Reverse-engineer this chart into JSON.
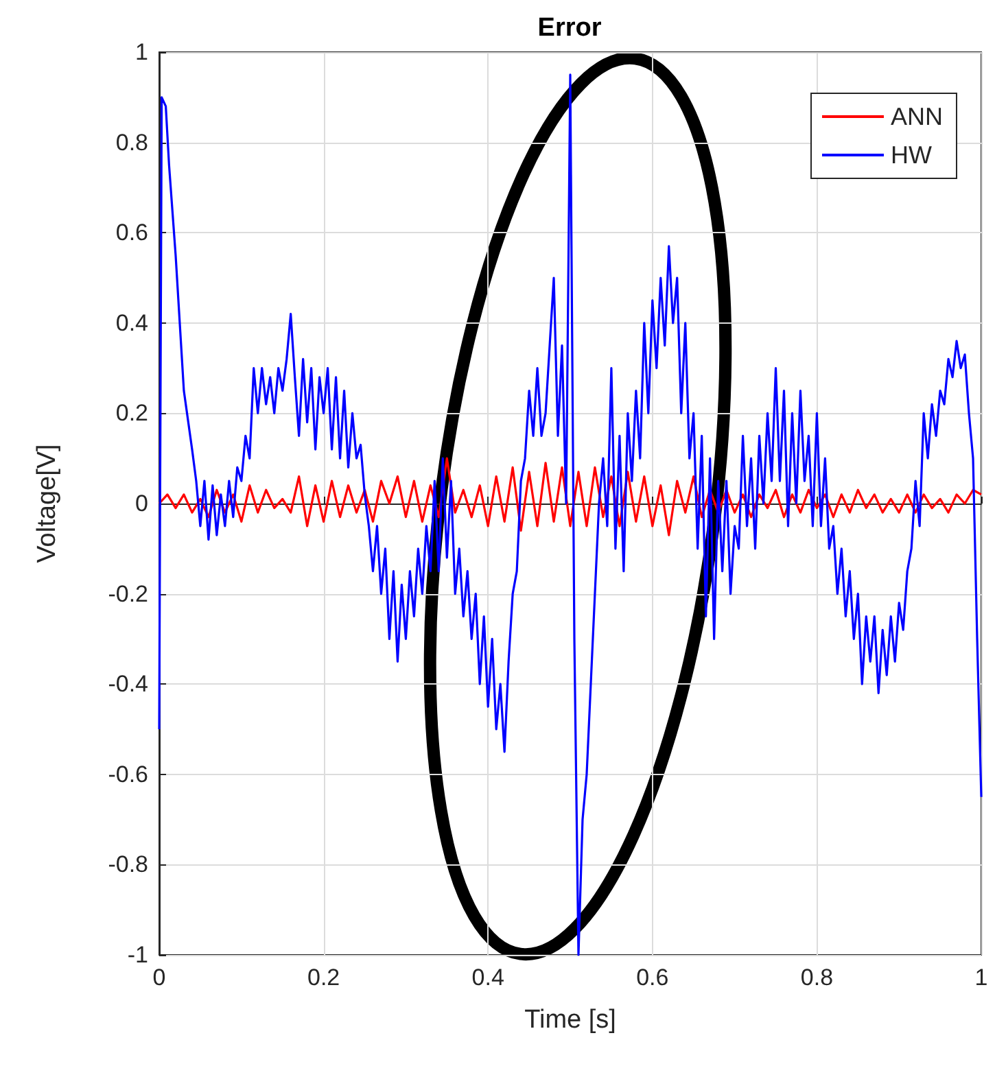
{
  "chart_data": {
    "type": "line",
    "title": "Error",
    "xlabel": "Time [s]",
    "ylabel": "Voltage[V]",
    "xlim": [
      0,
      1
    ],
    "xticks": [
      0,
      0.2,
      0.4,
      0.6,
      0.8,
      1
    ],
    "ylim": [
      -1,
      1
    ],
    "yticks": [
      -1,
      -0.8,
      -0.6,
      -0.4,
      -0.2,
      0,
      0.2,
      0.4,
      0.6,
      0.8,
      1
    ],
    "grid": true,
    "legend": "top right",
    "marker": "none",
    "line_style": "solid",
    "series": [
      {
        "name": "ANN",
        "color": "#ff0000",
        "x": [
          0,
          0.01,
          0.02,
          0.03,
          0.04,
          0.05,
          0.06,
          0.07,
          0.08,
          0.09,
          0.1,
          0.11,
          0.12,
          0.13,
          0.14,
          0.15,
          0.16,
          0.17,
          0.18,
          0.19,
          0.2,
          0.21,
          0.22,
          0.23,
          0.24,
          0.25,
          0.26,
          0.27,
          0.28,
          0.29,
          0.3,
          0.31,
          0.32,
          0.33,
          0.34,
          0.35,
          0.36,
          0.37,
          0.38,
          0.39,
          0.4,
          0.41,
          0.42,
          0.43,
          0.44,
          0.45,
          0.46,
          0.47,
          0.48,
          0.49,
          0.5,
          0.51,
          0.52,
          0.53,
          0.54,
          0.55,
          0.56,
          0.57,
          0.58,
          0.59,
          0.6,
          0.61,
          0.62,
          0.63,
          0.64,
          0.65,
          0.66,
          0.67,
          0.68,
          0.69,
          0.7,
          0.71,
          0.72,
          0.73,
          0.74,
          0.75,
          0.76,
          0.77,
          0.78,
          0.79,
          0.8,
          0.81,
          0.82,
          0.83,
          0.84,
          0.85,
          0.86,
          0.87,
          0.88,
          0.89,
          0.9,
          0.91,
          0.92,
          0.93,
          0.94,
          0.95,
          0.96,
          0.97,
          0.98,
          0.99,
          1
        ],
        "values": [
          0,
          0.02,
          -0.01,
          0.02,
          -0.02,
          0.01,
          -0.03,
          0.03,
          -0.02,
          0.02,
          -0.04,
          0.04,
          -0.02,
          0.03,
          -0.01,
          0.01,
          -0.02,
          0.06,
          -0.05,
          0.04,
          -0.04,
          0.05,
          -0.03,
          0.04,
          -0.02,
          0.03,
          -0.04,
          0.05,
          0,
          0.06,
          -0.03,
          0.05,
          -0.04,
          0.04,
          -0.03,
          0.1,
          -0.02,
          0.03,
          -0.03,
          0.04,
          -0.05,
          0.06,
          -0.04,
          0.08,
          -0.06,
          0.07,
          -0.05,
          0.09,
          -0.04,
          0.08,
          -0.05,
          0.07,
          -0.05,
          0.08,
          -0.03,
          0.06,
          -0.05,
          0.07,
          -0.04,
          0.06,
          -0.05,
          0.04,
          -0.07,
          0.05,
          -0.02,
          0.06,
          -0.03,
          0.03,
          -0.02,
          0.03,
          -0.02,
          0.02,
          -0.03,
          0.02,
          -0.01,
          0.03,
          -0.03,
          0.02,
          -0.02,
          0.03,
          -0.01,
          0.02,
          -0.03,
          0.02,
          -0.02,
          0.03,
          -0.01,
          0.02,
          -0.02,
          0.01,
          -0.02,
          0.02,
          -0.02,
          0.02,
          -0.01,
          0.01,
          -0.02,
          0.02,
          0,
          0.03,
          0.02
        ]
      },
      {
        "name": "HW",
        "color": "#0000ff",
        "x": [
          0,
          0.003,
          0.008,
          0.012,
          0.02,
          0.03,
          0.04,
          0.045,
          0.05,
          0.055,
          0.06,
          0.065,
          0.07,
          0.075,
          0.08,
          0.085,
          0.09,
          0.095,
          0.1,
          0.105,
          0.11,
          0.115,
          0.12,
          0.125,
          0.13,
          0.135,
          0.14,
          0.145,
          0.15,
          0.155,
          0.16,
          0.165,
          0.17,
          0.175,
          0.18,
          0.185,
          0.19,
          0.195,
          0.2,
          0.205,
          0.21,
          0.215,
          0.22,
          0.225,
          0.23,
          0.235,
          0.24,
          0.245,
          0.25,
          0.255,
          0.26,
          0.265,
          0.27,
          0.275,
          0.28,
          0.285,
          0.29,
          0.295,
          0.3,
          0.305,
          0.31,
          0.315,
          0.32,
          0.325,
          0.33,
          0.335,
          0.34,
          0.345,
          0.35,
          0.355,
          0.36,
          0.365,
          0.37,
          0.375,
          0.38,
          0.385,
          0.39,
          0.395,
          0.4,
          0.405,
          0.41,
          0.415,
          0.42,
          0.425,
          0.43,
          0.435,
          0.44,
          0.445,
          0.45,
          0.455,
          0.46,
          0.465,
          0.47,
          0.48,
          0.485,
          0.49,
          0.495,
          0.5,
          0.505,
          0.51,
          0.515,
          0.52,
          0.525,
          0.53,
          0.535,
          0.54,
          0.545,
          0.55,
          0.555,
          0.56,
          0.565,
          0.57,
          0.575,
          0.58,
          0.585,
          0.59,
          0.595,
          0.6,
          0.605,
          0.61,
          0.615,
          0.62,
          0.625,
          0.63,
          0.635,
          0.64,
          0.645,
          0.65,
          0.655,
          0.66,
          0.665,
          0.67,
          0.675,
          0.68,
          0.685,
          0.69,
          0.695,
          0.7,
          0.705,
          0.71,
          0.715,
          0.72,
          0.725,
          0.73,
          0.735,
          0.74,
          0.745,
          0.75,
          0.755,
          0.76,
          0.765,
          0.77,
          0.775,
          0.78,
          0.785,
          0.79,
          0.795,
          0.8,
          0.805,
          0.81,
          0.815,
          0.82,
          0.825,
          0.83,
          0.835,
          0.84,
          0.845,
          0.85,
          0.855,
          0.86,
          0.865,
          0.87,
          0.875,
          0.88,
          0.885,
          0.89,
          0.895,
          0.9,
          0.905,
          0.91,
          0.915,
          0.92,
          0.925,
          0.93,
          0.935,
          0.94,
          0.945,
          0.95,
          0.955,
          0.96,
          0.965,
          0.97,
          0.975,
          0.98,
          0.985,
          0.99,
          0.995,
          1
        ],
        "values": [
          -0.5,
          0.9,
          0.88,
          0.75,
          0.55,
          0.25,
          0.12,
          0.05,
          -0.05,
          0.05,
          -0.08,
          0.04,
          -0.07,
          0.02,
          -0.05,
          0.05,
          -0.03,
          0.08,
          0.05,
          0.15,
          0.1,
          0.3,
          0.2,
          0.3,
          0.22,
          0.28,
          0.2,
          0.3,
          0.25,
          0.32,
          0.42,
          0.28,
          0.15,
          0.32,
          0.18,
          0.3,
          0.12,
          0.28,
          0.2,
          0.3,
          0.12,
          0.28,
          0.1,
          0.25,
          0.08,
          0.2,
          0.1,
          0.13,
          0.02,
          -0.05,
          -0.15,
          -0.05,
          -0.2,
          -0.1,
          -0.3,
          -0.15,
          -0.35,
          -0.18,
          -0.3,
          -0.15,
          -0.25,
          -0.1,
          -0.2,
          -0.05,
          -0.15,
          0.05,
          -0.15,
          0.1,
          -0.12,
          0.05,
          -0.2,
          -0.1,
          -0.25,
          -0.15,
          -0.3,
          -0.2,
          -0.4,
          -0.25,
          -0.45,
          -0.3,
          -0.5,
          -0.4,
          -0.55,
          -0.35,
          -0.2,
          -0.15,
          0.05,
          0.1,
          0.25,
          0.15,
          0.3,
          0.15,
          0.2,
          0.5,
          0.15,
          0.35,
          0,
          0.95,
          -0.3,
          -1,
          -0.7,
          -0.6,
          -0.4,
          -0.2,
          0,
          0.1,
          -0.05,
          0.3,
          -0.1,
          0.15,
          -0.15,
          0.2,
          0.05,
          0.25,
          0.1,
          0.4,
          0.2,
          0.45,
          0.3,
          0.5,
          0.35,
          0.57,
          0.4,
          0.5,
          0.2,
          0.4,
          0.1,
          0.2,
          -0.1,
          0.15,
          -0.25,
          0.1,
          -0.3,
          0.05,
          -0.15,
          0.05,
          -0.2,
          -0.05,
          -0.1,
          0.15,
          -0.05,
          0.1,
          -0.1,
          0.15,
          0,
          0.2,
          0.05,
          0.3,
          0.05,
          0.25,
          -0.05,
          0.2,
          0,
          0.25,
          0.05,
          0.15,
          -0.05,
          0.2,
          -0.05,
          0.1,
          -0.1,
          -0.05,
          -0.2,
          -0.1,
          -0.25,
          -0.15,
          -0.3,
          -0.2,
          -0.4,
          -0.25,
          -0.35,
          -0.25,
          -0.42,
          -0.28,
          -0.38,
          -0.25,
          -0.35,
          -0.22,
          -0.28,
          -0.15,
          -0.1,
          0.05,
          -0.05,
          0.2,
          0.1,
          0.22,
          0.15,
          0.25,
          0.22,
          0.32,
          0.28,
          0.36,
          0.3,
          0.33,
          0.2,
          0.1,
          -0.3,
          -0.65
        ]
      }
    ]
  }
}
